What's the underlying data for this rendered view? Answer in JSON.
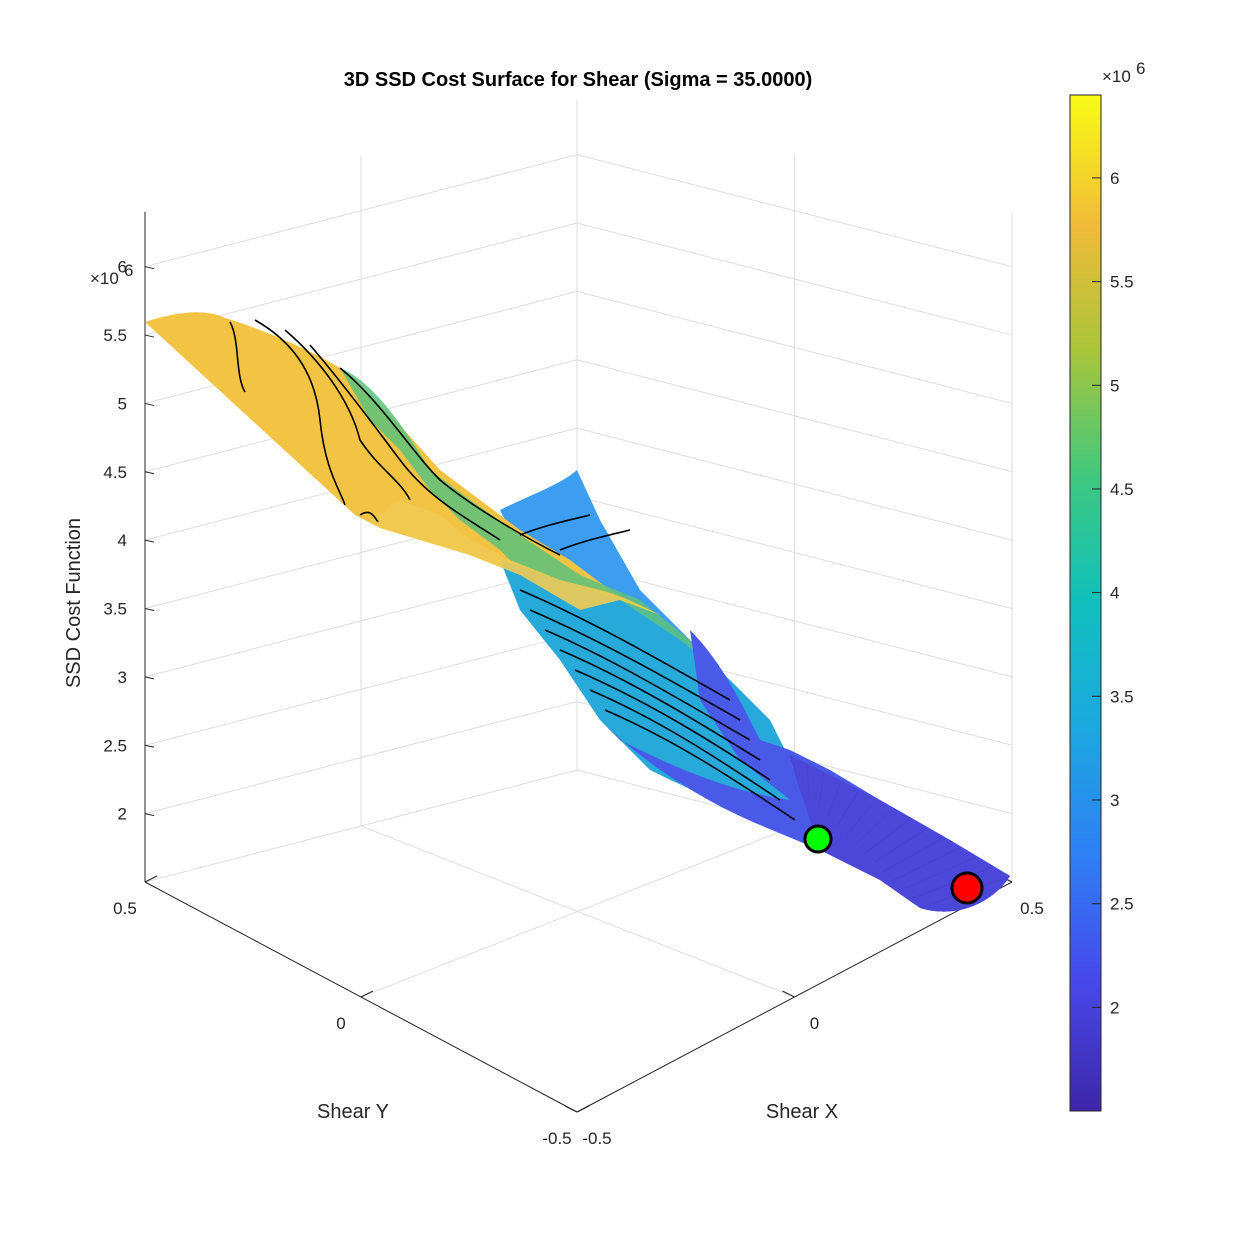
{
  "chart_data": {
    "type": "surface3d",
    "title": "3D SSD Cost Surface for Shear (Sigma = 35.0000)",
    "xlabel": "Shear X",
    "ylabel": "Shear Y",
    "zlabel": "SSD Cost Function",
    "x_ticks": [
      "-0.5",
      "0",
      "0.5"
    ],
    "y_ticks": [
      "-0.5",
      "0",
      "0.5"
    ],
    "z_ticks": [
      "2",
      "2.5",
      "3",
      "3.5",
      "4",
      "4.5",
      "5",
      "5.5",
      "6"
    ],
    "z_exponent": "6",
    "xlim": [
      -0.5,
      0.5
    ],
    "ylim": [
      -0.5,
      0.5
    ],
    "zlim": [
      1.5,
      6.4
    ],
    "colormap": "parula",
    "colorbar": {
      "range": [
        1.5,
        6.4
      ],
      "ticks": [
        "2",
        "2.5",
        "3",
        "3.5",
        "4",
        "4.5",
        "5",
        "5.5",
        "6"
      ],
      "exponent": "6"
    },
    "markers": [
      {
        "label": "green",
        "color": "#00ff00",
        "x": 0.2,
        "y": -0.27,
        "z": 1.7
      },
      {
        "label": "red",
        "color": "#ff0000",
        "x": 0.5,
        "y": -0.35,
        "z": 1.55
      }
    ],
    "grid": true
  }
}
